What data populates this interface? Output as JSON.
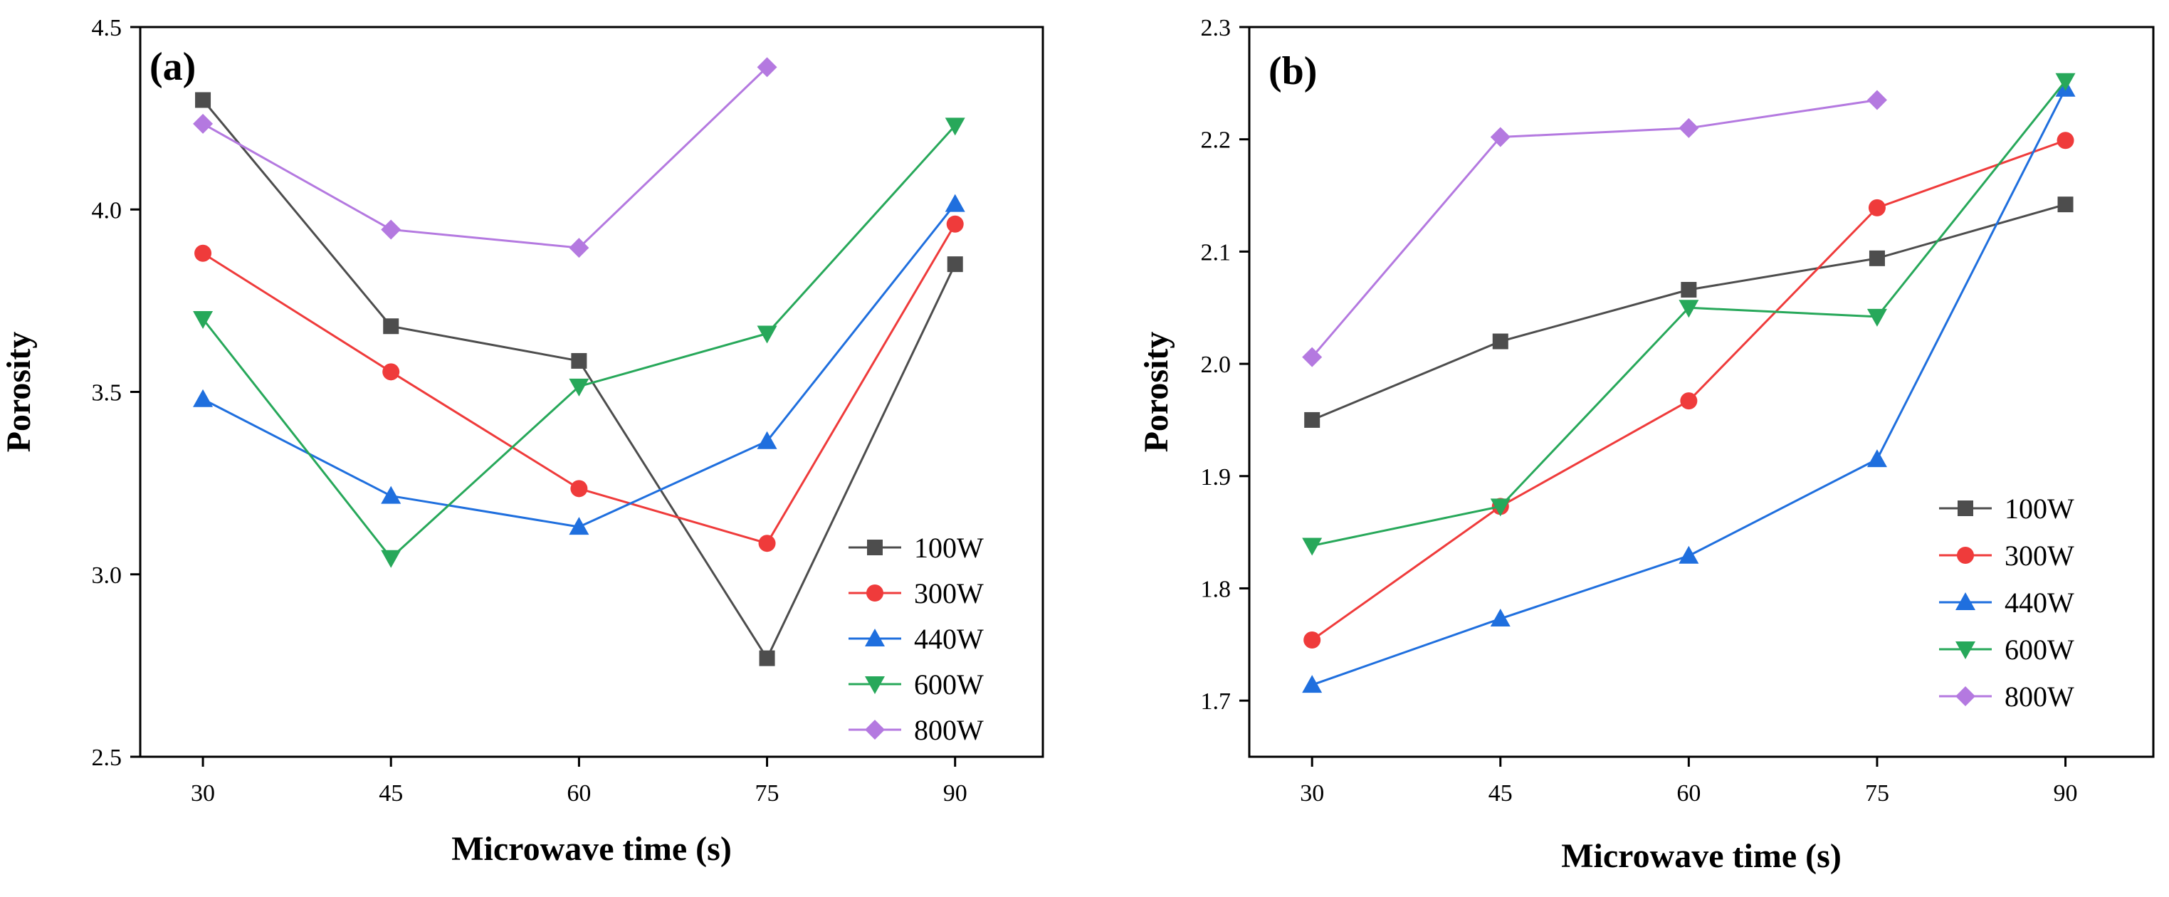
{
  "chart_data": [
    {
      "panel": "(a)",
      "type": "line",
      "title": "",
      "xlabel": "Microwave time (s)",
      "ylabel": "Porosity",
      "x": [
        30,
        45,
        60,
        75,
        90
      ],
      "xlim": [
        25,
        97
      ],
      "ylim": [
        2.5,
        4.5
      ],
      "xticks": [
        "30",
        "45",
        "60",
        "75",
        "90"
      ],
      "yticks": [
        "2.5",
        "3.0",
        "3.5",
        "4.0",
        "4.5"
      ],
      "legend_position": "bottom-right",
      "series": [
        {
          "name": "100W",
          "color": "#4d4d4d",
          "marker": "square",
          "values": [
            4.3,
            3.68,
            3.585,
            2.77,
            3.85
          ]
        },
        {
          "name": "300W",
          "color": "#ef3b3b",
          "marker": "circle",
          "values": [
            3.88,
            3.555,
            3.235,
            3.085,
            3.96
          ]
        },
        {
          "name": "440W",
          "color": "#1f6fde",
          "marker": "triangle-up",
          "values": [
            3.48,
            3.215,
            3.13,
            3.365,
            4.015
          ]
        },
        {
          "name": "600W",
          "color": "#27a85a",
          "marker": "triangle-down",
          "values": [
            3.7,
            3.045,
            3.515,
            3.66,
            4.23
          ]
        },
        {
          "name": "800W",
          "color": "#b479e0",
          "marker": "diamond",
          "values": [
            4.235,
            3.945,
            3.895,
            4.39,
            null
          ]
        }
      ]
    },
    {
      "panel": "(b)",
      "type": "line",
      "title": "",
      "xlabel": "Microwave time (s)",
      "ylabel": "Porosity",
      "x": [
        30,
        45,
        60,
        75,
        90
      ],
      "xlim": [
        25,
        97
      ],
      "ylim": [
        1.65,
        2.3
      ],
      "xticks": [
        "30",
        "45",
        "60",
        "75",
        "90"
      ],
      "yticks": [
        "1.7",
        "1.8",
        "1.9",
        "2.0",
        "2.1",
        "2.2",
        "2.3"
      ],
      "legend_position": "bottom-right",
      "series": [
        {
          "name": "100W",
          "color": "#4d4d4d",
          "marker": "square",
          "values": [
            1.95,
            2.02,
            2.066,
            2.094,
            2.142
          ]
        },
        {
          "name": "300W",
          "color": "#ef3b3b",
          "marker": "circle",
          "values": [
            1.754,
            1.873,
            1.967,
            2.139,
            2.199
          ]
        },
        {
          "name": "440W",
          "color": "#1f6fde",
          "marker": "triangle-up",
          "values": [
            1.714,
            1.773,
            1.829,
            1.915,
            2.245
          ]
        },
        {
          "name": "600W",
          "color": "#27a85a",
          "marker": "triangle-down",
          "values": [
            1.838,
            1.873,
            2.05,
            2.042,
            2.252
          ]
        },
        {
          "name": "800W",
          "color": "#b479e0",
          "marker": "diamond",
          "values": [
            2.006,
            2.202,
            2.21,
            2.235,
            null
          ]
        }
      ]
    }
  ]
}
